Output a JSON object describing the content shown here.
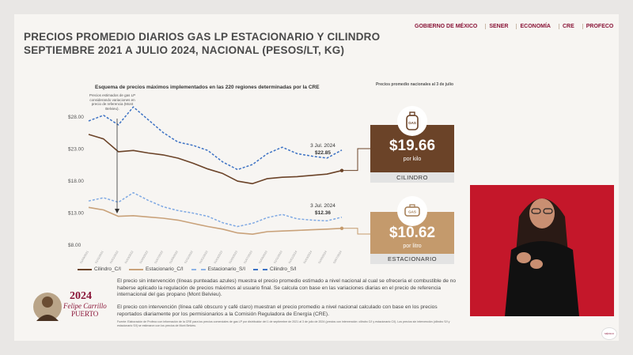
{
  "title_line1": "PRECIOS PROMEDIO DIARIOS GAS LP ESTACIONARIO Y CILINDRO",
  "title_line2": "SEPTIEMBRE 2021 A JULIO 2024, NACIONAL (PESOS/LT, KG)",
  "logos": [
    "GOBIERNO DE MÉXICO",
    "SENER",
    "ECONOMÍA",
    "CRE",
    "PROFECO"
  ],
  "chart_subtitle": "Esquema de precios máximos implementados en las 220 regiones determinadas por la CRE",
  "annotation_left": "Precios estimados de gas LP considerando variaciones en precio de referencia (Mont Belvieu).",
  "side_title": "Precios promedio nacionales al 3 de julio",
  "cilindro": {
    "icon": "GAS",
    "price": "$19.66",
    "unit": "por kilo",
    "label": "CILINDRO"
  },
  "estacionario": {
    "icon": "GAS",
    "price": "$10.62",
    "unit": "por litro",
    "label": "ESTACIONARIO"
  },
  "legend": [
    "Cilindro_C/I",
    "Estacionario_C/I",
    "Estacionario_S/I",
    "Cilindro_S/I"
  ],
  "paragraph1": "El precio sin intervención (líneas punteadas azules) muestra el precio promedio estimado a nivel nacional al cual se ofrecería el combustible de no haberse aplicado la regulación de precios máximos al usuario final. Se calcula con base en las variaciones diarias en el precio de referencia internacional del gas propano (Mont Belvieu).",
  "paragraph2": "El precio con intervención (línea café obscuro y café claro) muestran el precio promedio a nivel nacional calculado con base en los precios reportados diariamente por los permisionarios a la Comisión Reguladora de Energía (CRE).",
  "fine_print": "Fuente: Elaboración de Profeco con información de la CRE para los precios comerciales de gas LP por distribuidor del 1 de septiembre de 2021 al 3 de julio de 2024 (precios con intervención: cilindro C/I y estacionario C/I). Los precios sin intervención (cilindro S/I y estacionario S/I) se estimaron con los precios de Mont Belvieu.",
  "felipe": {
    "year": "2024",
    "name1": "Felipe Carrillo",
    "name2": "PUERTO"
  },
  "colors": {
    "cilindro_ci": "#6b4328",
    "estacionario_ci": "#c9a27a",
    "si": "#5b8fd6",
    "price_dark": "#6b4328",
    "price_light": "#c49a6c"
  },
  "chart_data": {
    "type": "line",
    "x": [
      "01/09/2021",
      "01/11/2021",
      "01/01/2022",
      "01/03/2022",
      "01/05/2022",
      "01/07/2022",
      "01/09/2022",
      "01/11/2022",
      "01/01/2023",
      "01/03/2023",
      "01/05/2023",
      "01/07/2023",
      "01/09/2023",
      "01/11/2023",
      "01/01/2024",
      "01/03/2024",
      "01/05/2024",
      "03/07/2024"
    ],
    "y_ticks": [
      "$8.00",
      "$13.00",
      "$18.00",
      "$23.00",
      "$28.00"
    ],
    "ylim": [
      8,
      30
    ],
    "annotations": [
      {
        "date": "3 Jul. 2024",
        "value": "$22.85"
      },
      {
        "date": "3 Jul. 2024",
        "value": "$12.36"
      }
    ],
    "series": [
      {
        "name": "Cilindro_S/I",
        "values": [
          27.4,
          28.3,
          26.8,
          29.6,
          27.6,
          25.6,
          24.1,
          23.6,
          22.8,
          21.0,
          19.8,
          20.6,
          22.3,
          23.3,
          22.3,
          21.9,
          21.6,
          22.85
        ]
      },
      {
        "name": "Cilindro_C/I",
        "values": [
          25.3,
          24.6,
          22.6,
          22.8,
          22.4,
          22.1,
          21.6,
          20.8,
          19.9,
          19.2,
          18.0,
          17.6,
          18.4,
          18.6,
          18.7,
          18.9,
          19.1,
          19.66
        ]
      },
      {
        "name": "Estacionario_S/I",
        "values": [
          14.9,
          15.4,
          14.7,
          16.2,
          15.0,
          14.0,
          13.4,
          13.0,
          12.5,
          11.5,
          10.9,
          11.4,
          12.3,
          12.8,
          12.1,
          11.9,
          11.8,
          12.36
        ]
      },
      {
        "name": "Estacionario_C/I",
        "values": [
          13.9,
          13.5,
          12.5,
          12.6,
          12.4,
          12.2,
          11.9,
          11.4,
          10.9,
          10.5,
          9.9,
          9.7,
          10.1,
          10.2,
          10.3,
          10.4,
          10.5,
          10.62
        ]
      }
    ]
  }
}
